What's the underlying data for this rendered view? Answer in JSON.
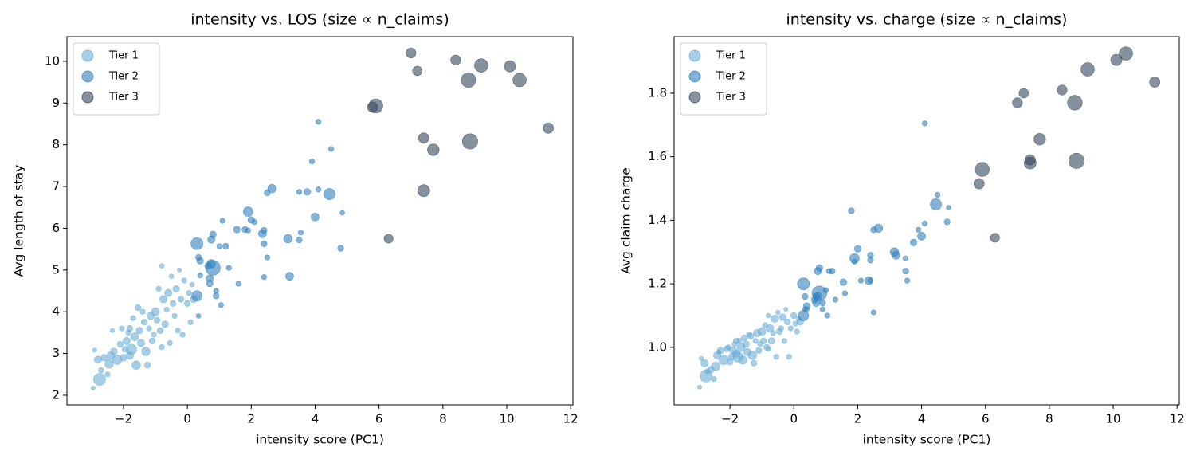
{
  "chart_data": [
    {
      "type": "scatter",
      "title": "intensity vs. LOS (size ∝ n_claims)",
      "x_label": "intensity score (PC1)",
      "y_label": "Avg length of stay",
      "xlim": [
        -3.77,
        12.07
      ],
      "ylim": [
        1.77,
        10.59
      ],
      "xticks": [
        {
          "value": -2,
          "label": "−2"
        },
        0,
        2,
        4,
        6,
        8,
        10,
        12
      ],
      "yticks": [
        2,
        3,
        4,
        5,
        6,
        7,
        8,
        9,
        10
      ],
      "grid": false,
      "legend": "upper left",
      "series": [
        {
          "name": "Tier 1",
          "color": "#6baed6",
          "x": [
            -2.95,
            -2.75,
            -2.9,
            -2.8,
            -2.7,
            -2.5,
            -2.45,
            -2.4,
            -2.3,
            -2.35,
            -2.2,
            -2.1,
            -2.05,
            -2.0,
            -1.9,
            -1.85,
            -1.8,
            -1.75,
            -1.7,
            -1.65,
            -1.6,
            -1.55,
            -1.5,
            -1.45,
            -1.4,
            -1.35,
            -1.3,
            -1.25,
            -1.2,
            -1.15,
            -1.1,
            -1.05,
            -1.0,
            -0.95,
            -0.9,
            -0.85,
            -0.8,
            -0.75,
            -0.7,
            -0.65,
            -0.6,
            -0.55,
            -0.5,
            -0.45,
            -0.4,
            -0.35,
            -0.3,
            -0.25,
            -0.2,
            -0.15,
            -0.1,
            0.0,
            0.05,
            0.1,
            0.15,
            0.2,
            -1.8,
            -2.6,
            -1.95,
            -0.8
          ],
          "values": [
            2.17,
            2.38,
            3.08,
            2.85,
            2.6,
            2.5,
            2.75,
            2.95,
            3.05,
            3.55,
            2.85,
            3.22,
            3.6,
            2.9,
            3.3,
            3.5,
            3.6,
            3.1,
            3.85,
            3.4,
            2.72,
            4.1,
            3.55,
            3.25,
            4.0,
            3.75,
            3.05,
            2.72,
            3.6,
            3.9,
            3.3,
            3.45,
            4.0,
            3.8,
            4.55,
            3.55,
            5.1,
            4.3,
            3.7,
            4.05,
            4.45,
            3.25,
            4.85,
            4.2,
            3.9,
            4.55,
            3.55,
            5.0,
            4.3,
            3.45,
            4.75,
            4.2,
            4.45,
            3.75,
            4.65,
            4.3,
            2.95,
            2.9,
            3.1,
            3.15
          ],
          "sizes": [
            10,
            80,
            10,
            30,
            15,
            15,
            40,
            30,
            25,
            10,
            50,
            20,
            15,
            25,
            30,
            15,
            20,
            60,
            15,
            35,
            40,
            20,
            25,
            30,
            15,
            20,
            40,
            20,
            15,
            30,
            20,
            15,
            35,
            20,
            15,
            20,
            12,
            30,
            25,
            15,
            30,
            15,
            12,
            20,
            15,
            25,
            15,
            10,
            20,
            15,
            15,
            20,
            15,
            15,
            12,
            25,
            30,
            25,
            20,
            15
          ]
        },
        {
          "name": "Tier 2",
          "color": "#3182bd",
          "x": [
            4.1,
            4.5,
            3.9,
            4.45,
            2.65,
            2.5,
            3.75,
            3.5,
            4.1,
            4.0,
            4.85,
            1.9,
            2.0,
            2.1,
            1.1,
            1.55,
            1.8,
            1.9,
            2.4,
            2.35,
            0.8,
            0.75,
            0.3,
            1.0,
            1.2,
            3.15,
            3.5,
            3.55,
            2.4,
            4.8,
            0.35,
            0.4,
            0.65,
            0.8,
            0.75,
            1.3,
            0.4,
            0.7,
            0.7,
            2.4,
            3.2,
            1.6,
            0.9,
            0.9,
            0.3,
            1.05,
            0.35,
            2.5
          ],
          "values": [
            8.55,
            7.9,
            7.6,
            6.82,
            6.95,
            6.85,
            6.87,
            6.87,
            6.93,
            6.27,
            6.37,
            6.4,
            6.2,
            6.15,
            6.18,
            5.97,
            5.97,
            5.95,
            5.95,
            5.87,
            5.85,
            5.73,
            5.63,
            5.57,
            5.57,
            5.75,
            5.72,
            5.9,
            5.63,
            5.52,
            5.3,
            5.22,
            5.1,
            5.05,
            5.15,
            5.05,
            4.87,
            4.8,
            4.68,
            4.83,
            4.85,
            4.67,
            4.5,
            4.38,
            4.38,
            4.16,
            3.9,
            5.3
          ],
          "sizes": [
            15,
            15,
            15,
            70,
            40,
            20,
            25,
            15,
            15,
            35,
            12,
            50,
            25,
            15,
            15,
            25,
            20,
            15,
            20,
            35,
            25,
            30,
            80,
            15,
            20,
            40,
            20,
            15,
            20,
            20,
            20,
            25,
            25,
            120,
            40,
            15,
            15,
            30,
            25,
            15,
            35,
            15,
            15,
            20,
            60,
            15,
            12,
            15
          ]
        },
        {
          "name": "Tier 3",
          "color": "#34495e",
          "x": [
            5.8,
            5.9,
            6.3,
            7.0,
            7.2,
            7.4,
            7.4,
            7.7,
            8.4,
            8.8,
            8.85,
            9.2,
            10.1,
            10.4,
            11.3
          ],
          "values": [
            8.9,
            8.93,
            5.75,
            10.2,
            9.77,
            8.16,
            6.9,
            7.88,
            10.03,
            9.55,
            8.08,
            9.9,
            9.88,
            9.55,
            8.4
          ],
          "sizes": [
            60,
            110,
            45,
            55,
            50,
            60,
            80,
            75,
            55,
            120,
            130,
            100,
            70,
            100,
            60
          ]
        }
      ]
    },
    {
      "type": "scatter",
      "title": "intensity vs. charge (size ∝ n_claims)",
      "x_label": "intensity score (PC1)",
      "y_label": "Avg claim charge",
      "xlim": [
        -3.75,
        12.07
      ],
      "ylim": [
        0.819,
        1.978
      ],
      "xticks": [
        {
          "value": -2,
          "label": "−2"
        },
        0,
        2,
        4,
        6,
        8,
        10,
        12
      ],
      "yticks": [
        {
          "value": 1,
          "label": "1.0"
        },
        1.2,
        1.4,
        1.6,
        1.8
      ],
      "grid": false,
      "legend": "upper left",
      "series": [
        {
          "name": "Tier 1",
          "color": "#6baed6",
          "x": [
            -2.95,
            -2.75,
            -2.9,
            -2.8,
            -2.7,
            -2.5,
            -2.45,
            -2.4,
            -2.3,
            -2.35,
            -2.2,
            -2.1,
            -2.05,
            -2.0,
            -1.9,
            -1.85,
            -1.8,
            -1.75,
            -1.7,
            -1.65,
            -1.6,
            -1.55,
            -1.5,
            -1.45,
            -1.4,
            -1.35,
            -1.3,
            -1.25,
            -1.2,
            -1.15,
            -1.1,
            -1.05,
            -1.0,
            -0.95,
            -0.9,
            -0.85,
            -0.8,
            -0.75,
            -0.7,
            -0.65,
            -0.6,
            -0.55,
            -0.5,
            -0.45,
            -0.4,
            -0.35,
            -0.3,
            -0.25,
            -0.2,
            -0.15,
            -0.1,
            0.0,
            0.05,
            0.1,
            0.15,
            0.2,
            -1.8,
            -2.6,
            -1.95,
            -0.8
          ],
          "values": [
            0.875,
            0.91,
            0.965,
            0.95,
            0.925,
            0.9,
            0.94,
            0.975,
            0.99,
            0.985,
            0.96,
            0.995,
            1.0,
            0.955,
            0.99,
            1.01,
            1.02,
            0.97,
            1.02,
            1.0,
            0.96,
            1.03,
            1.01,
            0.985,
            1.04,
            1.035,
            0.975,
            0.95,
            1.02,
            1.045,
            0.99,
            1.01,
            1.05,
            1.02,
            1.07,
            1.0,
            1.1,
            1.06,
            1.02,
            1.045,
            1.09,
            0.97,
            1.11,
            1.05,
            1.06,
            1.095,
            1.02,
            1.12,
            1.08,
            0.97,
            1.06,
            1.1,
            1.075,
            1.05,
            1.09,
            1.08,
            0.98,
            0.93,
            0.97,
            0.995
          ],
          "sizes": [
            10,
            80,
            10,
            30,
            15,
            15,
            40,
            30,
            25,
            10,
            50,
            20,
            15,
            25,
            30,
            15,
            20,
            60,
            15,
            35,
            40,
            20,
            25,
            30,
            15,
            20,
            40,
            20,
            15,
            30,
            20,
            15,
            35,
            20,
            15,
            20,
            12,
            30,
            25,
            15,
            30,
            15,
            12,
            20,
            15,
            25,
            15,
            10,
            20,
            15,
            15,
            20,
            15,
            15,
            12,
            25,
            30,
            25,
            20,
            15
          ]
        },
        {
          "name": "Tier 2",
          "color": "#3182bd",
          "x": [
            4.1,
            4.5,
            3.9,
            4.45,
            2.65,
            2.5,
            3.75,
            3.5,
            4.1,
            4.0,
            4.85,
            1.9,
            2.0,
            2.1,
            1.1,
            1.55,
            1.8,
            1.9,
            2.4,
            2.35,
            0.8,
            0.75,
            0.3,
            1.0,
            1.2,
            3.15,
            3.5,
            3.55,
            2.4,
            4.8,
            0.35,
            0.4,
            0.65,
            0.8,
            0.75,
            1.3,
            0.4,
            0.7,
            0.7,
            2.4,
            3.2,
            1.6,
            0.9,
            0.9,
            0.3,
            1.05,
            0.35,
            2.5
          ],
          "values": [
            1.705,
            1.48,
            1.37,
            1.45,
            1.375,
            1.37,
            1.33,
            1.28,
            1.39,
            1.35,
            1.44,
            1.28,
            1.31,
            1.21,
            1.24,
            1.205,
            1.43,
            1.27,
            1.29,
            1.21,
            1.25,
            1.24,
            1.2,
            1.18,
            1.24,
            1.3,
            1.24,
            1.21,
            1.275,
            1.395,
            1.16,
            1.13,
            1.15,
            1.17,
            1.16,
            1.15,
            1.12,
            1.14,
            1.16,
            1.21,
            1.29,
            1.17,
            1.12,
            1.14,
            1.1,
            1.1,
            1.12,
            1.11
          ],
          "sizes": [
            15,
            15,
            15,
            70,
            40,
            20,
            25,
            15,
            15,
            35,
            12,
            50,
            25,
            15,
            15,
            25,
            20,
            15,
            20,
            35,
            25,
            30,
            80,
            15,
            20,
            40,
            20,
            15,
            20,
            20,
            20,
            25,
            25,
            120,
            40,
            15,
            15,
            30,
            25,
            15,
            35,
            15,
            15,
            20,
            60,
            15,
            12,
            15
          ]
        },
        {
          "name": "Tier 3",
          "color": "#34495e",
          "x": [
            5.8,
            5.9,
            6.3,
            7.0,
            7.2,
            7.4,
            7.4,
            7.7,
            8.4,
            8.8,
            8.85,
            9.2,
            10.1,
            10.4,
            11.3
          ],
          "values": [
            1.515,
            1.56,
            1.345,
            1.77,
            1.8,
            1.59,
            1.58,
            1.655,
            1.81,
            1.77,
            1.587,
            1.875,
            1.905,
            1.925,
            1.835
          ],
          "sizes": [
            60,
            110,
            45,
            55,
            50,
            60,
            80,
            75,
            55,
            120,
            130,
            100,
            70,
            100,
            60
          ]
        }
      ]
    }
  ]
}
